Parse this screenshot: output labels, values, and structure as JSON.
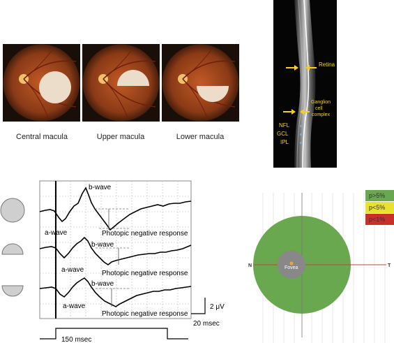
{
  "fundus": {
    "captions": [
      "Central macula",
      "Upper macula",
      "Lower macula"
    ]
  },
  "oct": {
    "retina_label": "Retina",
    "ganglion_label_line1": "Ganglion",
    "ganglion_label_line2": "cell",
    "ganglion_label_line3": "complex",
    "nfl_label": "NFL",
    "gcl_label": "GCL",
    "ipl_label": "IPL"
  },
  "erg": {
    "b_wave": "b-wave",
    "a_wave": "a-wave",
    "pnr": "Photopic negative response",
    "scale_voltage": "2 μV",
    "scale_time": "20 msec",
    "stimulus_duration": "150  msec"
  },
  "map": {
    "legend": [
      {
        "label": "p>5%",
        "color": "#6aa84f"
      },
      {
        "label": "p<5%",
        "color": "#e8e22e"
      },
      {
        "label": "p<1%",
        "color": "#c8302c"
      }
    ],
    "fovea_label": "Fovea",
    "n_label": "N",
    "t_label": "T",
    "field_color": "#6aa84f"
  }
}
